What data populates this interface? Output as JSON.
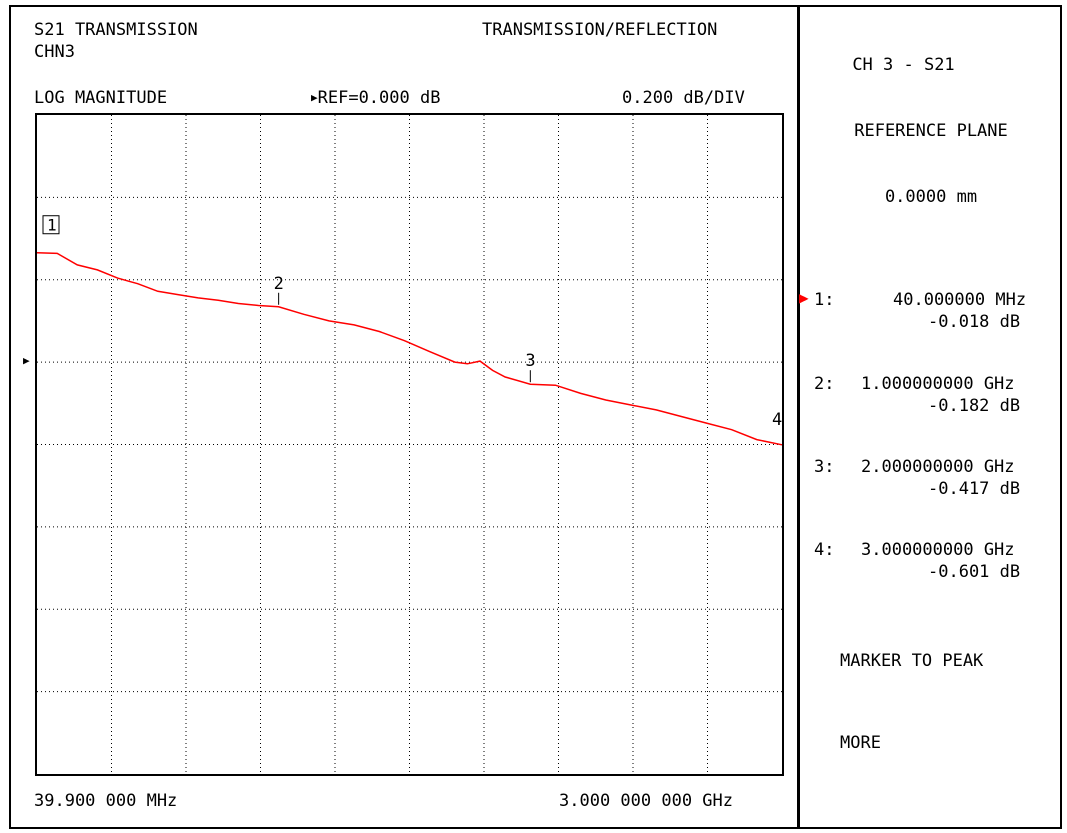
{
  "header": {
    "title_line1": "S21 TRANSMISSION",
    "title_line2": "CHN3",
    "mode": "TRANSMISSION/REFLECTION",
    "format": "LOG MAGNITUDE",
    "reference": "REF=0.000 dB",
    "scale": "0.200 dB/DIV"
  },
  "axis": {
    "start": "39.900 000 MHz",
    "stop": "3.000 000 000 GHz"
  },
  "side_panel": {
    "channel": "CH 3 - S21",
    "ref_plane_label": "REFERENCE PLANE",
    "ref_plane_value": "0.0000 mm",
    "softkeys": [
      "MARKER TO PEAK",
      "MORE"
    ]
  },
  "markers": [
    {
      "label": "1:",
      "id": "1",
      "freq": "40.000000 MHz",
      "value": "-0.018 dB",
      "active": true
    },
    {
      "label": "2:",
      "id": "2",
      "freq": "1.000000000 GHz",
      "value": "-0.182 dB",
      "active": false
    },
    {
      "label": "3:",
      "id": "3",
      "freq": "2.000000000 GHz",
      "value": "-0.417 dB",
      "active": false
    },
    {
      "label": "4:",
      "id": "4",
      "freq": "3.000000000 GHz",
      "value": "-0.601 dB",
      "active": false
    }
  ],
  "colors": {
    "trace": "#ff0000",
    "active_marker": "#ff0000",
    "grid": "#000000"
  },
  "chart_data": {
    "type": "line",
    "x_unit": "GHz",
    "y_unit": "dB",
    "xlim": [
      0.0399,
      3.0
    ],
    "ylim": [
      -1.6,
      0.4
    ],
    "reference_value": 0.0,
    "grid": true,
    "series": [
      {
        "x": [
          0.0399,
          0.12,
          0.2,
          0.28,
          0.36,
          0.44,
          0.52,
          0.6,
          0.68,
          0.76,
          0.84,
          0.92,
          1.0,
          1.1,
          1.2,
          1.3,
          1.4,
          1.5,
          1.6,
          1.7,
          1.75,
          1.8,
          1.85,
          1.9,
          2.0,
          2.1,
          2.2,
          2.3,
          2.4,
          2.5,
          2.6,
          2.7,
          2.8,
          2.9,
          3.0
        ],
        "y": [
          -0.018,
          -0.02,
          -0.055,
          -0.07,
          -0.095,
          -0.112,
          -0.135,
          -0.145,
          -0.155,
          -0.162,
          -0.172,
          -0.178,
          -0.182,
          -0.205,
          -0.225,
          -0.237,
          -0.257,
          -0.285,
          -0.318,
          -0.35,
          -0.355,
          -0.347,
          -0.375,
          -0.395,
          -0.417,
          -0.42,
          -0.445,
          -0.465,
          -0.48,
          -0.495,
          -0.515,
          -0.535,
          -0.555,
          -0.585,
          -0.601
        ]
      }
    ]
  }
}
